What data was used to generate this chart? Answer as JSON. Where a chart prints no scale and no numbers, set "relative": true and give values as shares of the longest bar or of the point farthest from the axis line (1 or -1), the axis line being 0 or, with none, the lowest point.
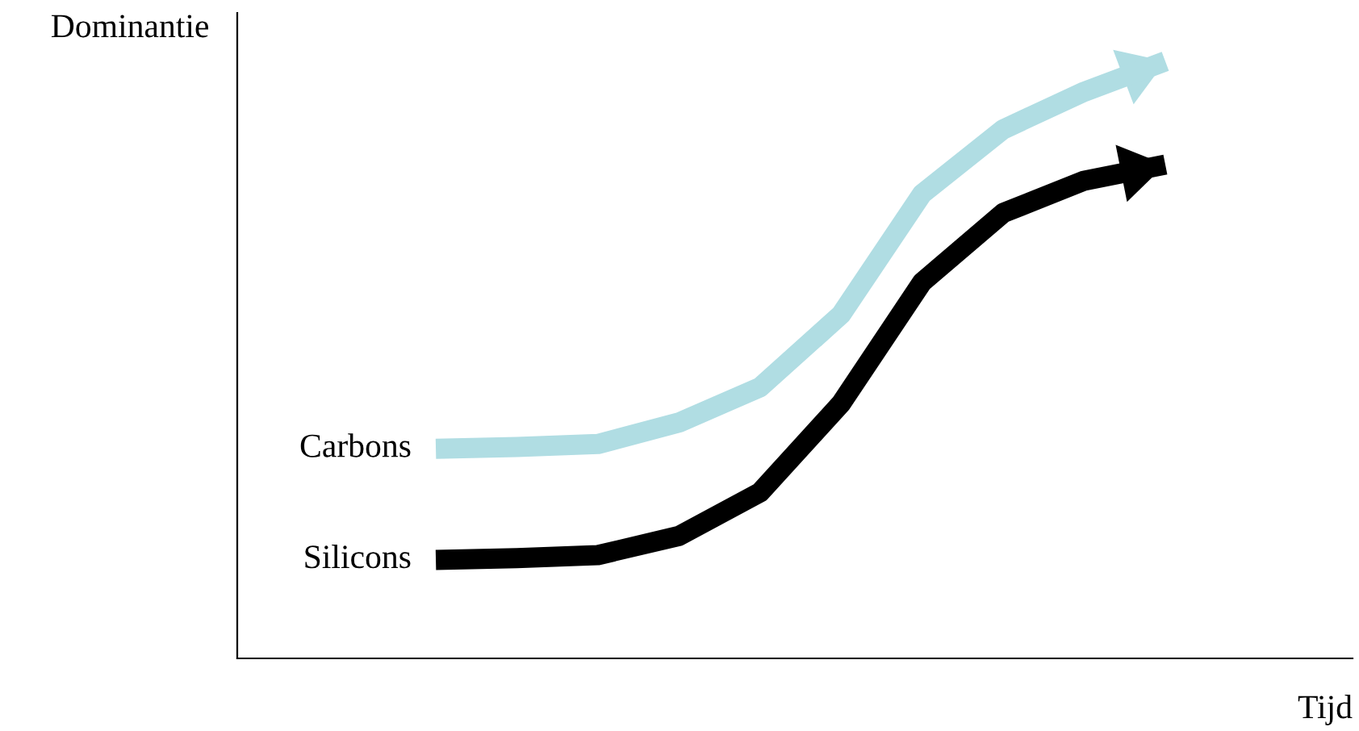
{
  "chart_data": {
    "type": "line",
    "relative": true,
    "xlabel": "Tijd",
    "annotations": [
      "Dominantie"
    ],
    "legend": false,
    "categories": [
      null,
      null,
      null,
      null,
      null,
      null,
      null,
      null,
      null,
      null
    ],
    "series": [
      {
        "name": "Carbons",
        "color": "#b0dde3",
        "values": [
          0.351,
          0.354,
          0.359,
          0.395,
          0.454,
          0.576,
          0.778,
          0.886,
          0.949,
          1
        ]
      },
      {
        "name": "Silicons",
        "color": "#000000",
        "values": [
          0.165,
          0.168,
          0.173,
          0.205,
          0.278,
          0.427,
          0.63,
          0.746,
          0.8,
          0.827
        ]
      }
    ]
  }
}
